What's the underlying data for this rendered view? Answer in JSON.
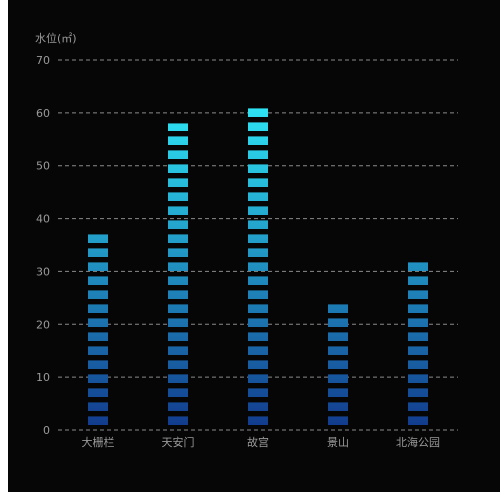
{
  "chart_data": {
    "type": "bar",
    "ylabel": "水位(㎡)",
    "categories": [
      "大栅栏",
      "天安门",
      "故宫",
      "景山",
      "北海公园"
    ],
    "values": [
      37,
      58,
      61,
      24,
      32
    ],
    "ylim": [
      0,
      70
    ],
    "yticks": [
      0,
      10,
      20,
      30,
      40,
      50,
      60,
      70
    ],
    "grid": true,
    "style": "segmented gradient bars",
    "colors": {
      "bar_bottom": "#123a8c",
      "bar_top": "#2ee6f5",
      "grid": "#8a8a8a",
      "axis_text": "#9a9a9a",
      "background": "#060606"
    }
  }
}
